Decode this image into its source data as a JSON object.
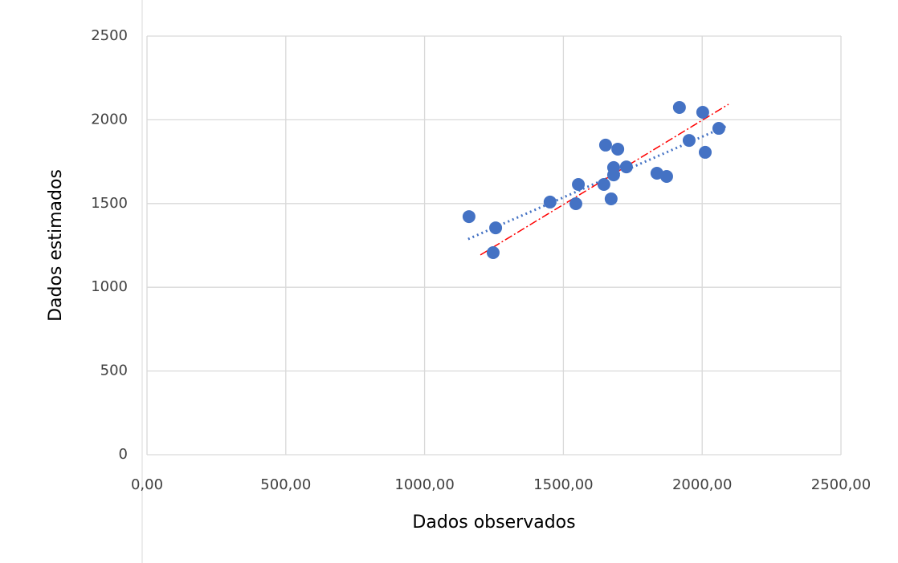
{
  "chart_data": {
    "type": "scatter",
    "x_label": "Dados observados",
    "y_label": "Dados estimados",
    "xlim": [
      0,
      2500
    ],
    "ylim": [
      0,
      2500
    ],
    "xticks": [
      {
        "value": 0,
        "label": "0,00"
      },
      {
        "value": 500,
        "label": "500,00"
      },
      {
        "value": 1000,
        "label": "1000,00"
      },
      {
        "value": 1500,
        "label": "1500,00"
      },
      {
        "value": 2000,
        "label": "2000,00"
      },
      {
        "value": 2500,
        "label": "2500,00"
      }
    ],
    "yticks": [
      0,
      500,
      1000,
      1500,
      2000,
      2500
    ],
    "grid": true,
    "series": [
      {
        "color": "#4472c4",
        "x": [
          1160,
          1256,
          1247,
          1452,
          1545,
          1554,
          1646,
          1652,
          1696,
          1681,
          1681,
          1672,
          1727,
          1837,
          1872,
          1918,
          1953,
          2002,
          2011,
          2060
        ],
        "values": [
          1422,
          1355,
          1207,
          1509,
          1499,
          1614,
          1614,
          1849,
          1825,
          1715,
          1671,
          1528,
          1719,
          1681,
          1662,
          2074,
          1877,
          2045,
          1806,
          1949
        ]
      }
    ],
    "trendlines": [
      {
        "color": "#4472c4",
        "style": "dotted",
        "x": [
          1157,
          2095
        ],
        "values": [
          1288,
          1968
        ]
      },
      {
        "color": "#ff0000",
        "style": "dashdot",
        "x": [
          1201,
          2095
        ],
        "values": [
          1193,
          2093
        ]
      }
    ]
  }
}
